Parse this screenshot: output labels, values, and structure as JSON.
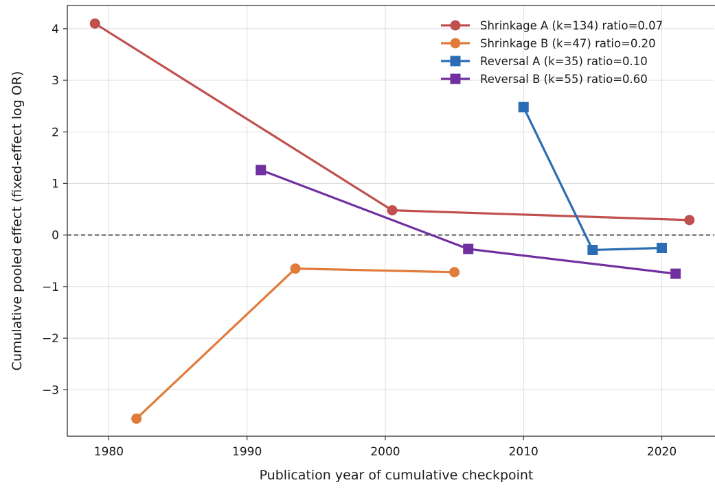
{
  "chart_data": {
    "type": "line",
    "title": "",
    "xlabel": "Publication year of cumulative checkpoint",
    "ylabel": "Cumulative pooled effect (fixed-effect log OR)",
    "xlim": [
      1977,
      2023.8
    ],
    "ylim": [
      -3.9,
      4.45
    ],
    "x_ticks": [
      1980,
      1990,
      2000,
      2010,
      2020
    ],
    "x_tick_labels": [
      "1980",
      "1990",
      "2000",
      "2010",
      "2020"
    ],
    "y_ticks": [
      -3,
      -2,
      -1,
      0,
      1,
      2,
      3,
      4
    ],
    "y_tick_labels": [
      "−3",
      "−2",
      "−1",
      "0",
      "1",
      "2",
      "3",
      "4"
    ],
    "grid": true,
    "reference_line": {
      "y": 0,
      "style": "dashed"
    },
    "legend_position": "top-right",
    "series": [
      {
        "name": "Shrinkage A (k=134)  ratio=0.07",
        "color": "#c0504d",
        "marker": "circle",
        "points": [
          [
            1979,
            4.1
          ],
          [
            2000.5,
            0.48
          ],
          [
            2022,
            0.29
          ]
        ]
      },
      {
        "name": "Shrinkage B (k=47)  ratio=0.20",
        "color": "#e07b39",
        "marker": "circle",
        "points": [
          [
            1982,
            -3.56
          ],
          [
            1993.5,
            -0.65
          ],
          [
            2005,
            -0.72
          ]
        ]
      },
      {
        "name": "Reversal A (k=35)  ratio=0.10",
        "color": "#2a6db5",
        "marker": "square",
        "points": [
          [
            2010,
            2.48
          ],
          [
            2015,
            -0.29
          ],
          [
            2020,
            -0.25
          ]
        ]
      },
      {
        "name": "Reversal B (k=55)  ratio=0.60",
        "color": "#7030a0",
        "marker": "square",
        "points": [
          [
            1991,
            1.26
          ],
          [
            2006,
            -0.27
          ],
          [
            2021,
            -0.75
          ]
        ]
      }
    ]
  }
}
